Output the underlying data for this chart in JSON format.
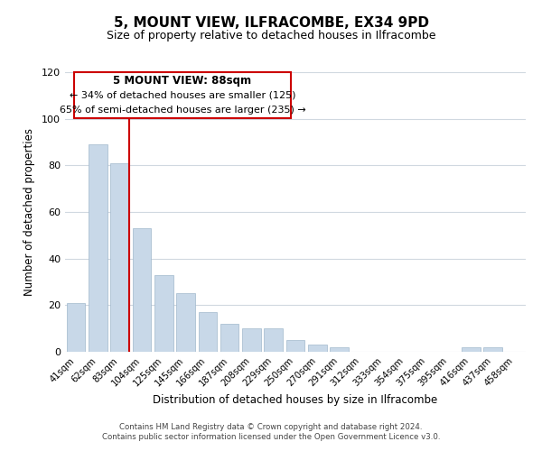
{
  "title": "5, MOUNT VIEW, ILFRACOMBE, EX34 9PD",
  "subtitle": "Size of property relative to detached houses in Ilfracombe",
  "xlabel": "Distribution of detached houses by size in Ilfracombe",
  "ylabel": "Number of detached properties",
  "bar_labels": [
    "41sqm",
    "62sqm",
    "83sqm",
    "104sqm",
    "125sqm",
    "145sqm",
    "166sqm",
    "187sqm",
    "208sqm",
    "229sqm",
    "250sqm",
    "270sqm",
    "291sqm",
    "312sqm",
    "333sqm",
    "354sqm",
    "375sqm",
    "395sqm",
    "416sqm",
    "437sqm",
    "458sqm"
  ],
  "bar_values": [
    21,
    89,
    81,
    53,
    33,
    25,
    17,
    12,
    10,
    10,
    5,
    3,
    2,
    0,
    0,
    0,
    0,
    0,
    2,
    2,
    0
  ],
  "bar_color": "#c8d8e8",
  "bar_edge_color": "#a0b8cc",
  "red_line_index": 2,
  "ylim": [
    0,
    120
  ],
  "yticks": [
    0,
    20,
    40,
    60,
    80,
    100,
    120
  ],
  "annotation_title": "5 MOUNT VIEW: 88sqm",
  "annotation_line1": "← 34% of detached houses are smaller (125)",
  "annotation_line2": "65% of semi-detached houses are larger (235) →",
  "annotation_box_color": "#ffffff",
  "annotation_box_edge_color": "#cc0000",
  "footer_line1": "Contains HM Land Registry data © Crown copyright and database right 2024.",
  "footer_line2": "Contains public sector information licensed under the Open Government Licence v3.0.",
  "background_color": "#ffffff",
  "grid_color": "#d0d8e0"
}
